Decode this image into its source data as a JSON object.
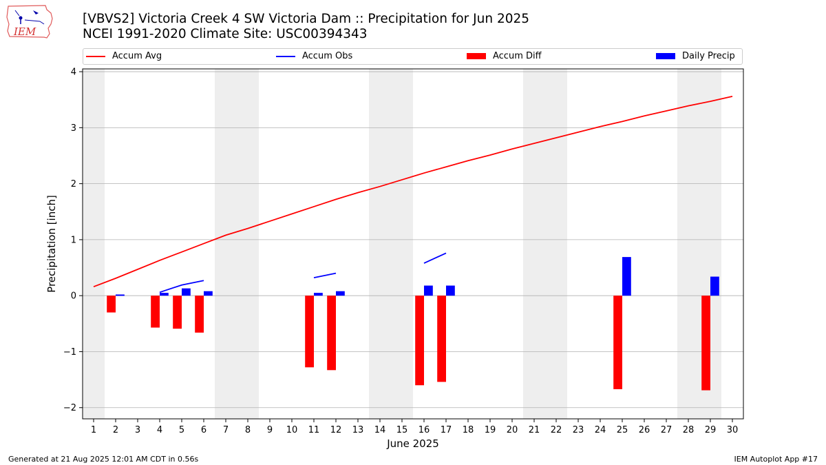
{
  "header": {
    "title_line1": "[VBVS2] Victoria Creek 4 SW Victoria Dam :: Precipitation for Jun 2025",
    "title_line2": "NCEI 1991-2020 Climate Site: USC00394343"
  },
  "logo": {
    "text": "IEM",
    "icon": "iem-iowa-logo"
  },
  "footer": {
    "left": "Generated at 21 Aug 2025 12:01 AM CDT in 0.56s",
    "right": "IEM Autoplot App #17"
  },
  "colors": {
    "accum_avg": "#ff0000",
    "accum_obs": "#0000ff",
    "accum_diff": "#ff0000",
    "daily_precip": "#0000ff",
    "weekend_shade": "#eeeeee",
    "grid": "#b0b0b0"
  },
  "chart_data": {
    "type": "bar",
    "xlabel": "June 2025",
    "ylabel": "Precipitation [inch]",
    "ylim": [
      -2.2,
      4.05
    ],
    "yticks": [
      -2,
      -1,
      0,
      1,
      2,
      3,
      4
    ],
    "xlim": [
      0.5,
      30.5
    ],
    "days": [
      1,
      2,
      3,
      4,
      5,
      6,
      7,
      8,
      9,
      10,
      11,
      12,
      13,
      14,
      15,
      16,
      17,
      18,
      19,
      20,
      21,
      22,
      23,
      24,
      25,
      26,
      27,
      28,
      29,
      30
    ],
    "grid": "horizontal",
    "legend_position": "top",
    "weekend_shading": [
      [
        0.5,
        1.5
      ],
      [
        6.5,
        8.5
      ],
      [
        13.5,
        15.5
      ],
      [
        20.5,
        22.5
      ],
      [
        27.5,
        29.5
      ]
    ],
    "legend": [
      "Accum Avg",
      "Accum Obs",
      "Accum Diff",
      "Daily Precip"
    ],
    "accum_avg": {
      "x": [
        1,
        2,
        3,
        4,
        5,
        6,
        7,
        8,
        9,
        10,
        11,
        12,
        13,
        14,
        15,
        16,
        17,
        18,
        19,
        20,
        21,
        22,
        23,
        24,
        25,
        26,
        27,
        28,
        29,
        30
      ],
      "y": [
        0.16,
        0.31,
        0.47,
        0.63,
        0.78,
        0.93,
        1.08,
        1.2,
        1.33,
        1.46,
        1.59,
        1.72,
        1.84,
        1.95,
        2.07,
        2.19,
        2.3,
        2.41,
        2.51,
        2.62,
        2.72,
        2.82,
        2.92,
        3.02,
        3.11,
        3.21,
        3.3,
        3.39,
        3.47,
        3.56
      ]
    },
    "accum_obs": [
      {
        "x": [
          2
        ],
        "y": [
          0.01
        ]
      },
      {
        "x": [
          4,
          5,
          6
        ],
        "y": [
          0.06,
          0.19,
          0.27
        ]
      },
      {
        "x": [
          11,
          12
        ],
        "y": [
          0.32,
          0.4
        ]
      },
      {
        "x": [
          16,
          17
        ],
        "y": [
          0.58,
          0.76
        ]
      }
    ],
    "accum_diff": {
      "x": [
        2,
        4,
        5,
        6,
        11,
        12,
        16,
        17,
        25,
        29
      ],
      "y": [
        -0.3,
        -0.57,
        -0.59,
        -0.66,
        -1.28,
        -1.33,
        -1.6,
        -1.54,
        -1.67,
        -1.69
      ]
    },
    "daily_precip": {
      "x": [
        2,
        4,
        5,
        6,
        11,
        12,
        16,
        17,
        25,
        29
      ],
      "y": [
        0.01,
        0.05,
        0.13,
        0.08,
        0.05,
        0.08,
        0.18,
        0.18,
        0.69,
        0.34
      ]
    }
  }
}
